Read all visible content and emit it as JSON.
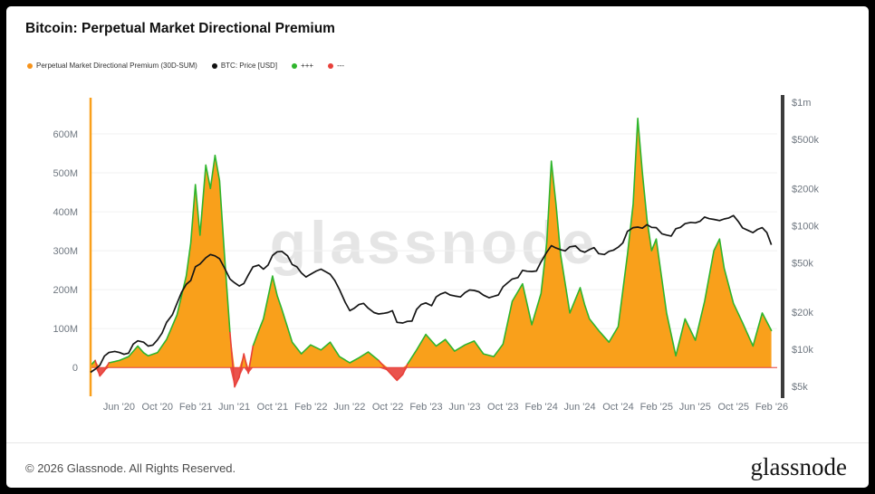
{
  "header": {
    "title": "Bitcoin: Perpetual Market Directional Premium"
  },
  "legend": [
    {
      "label": "Perpetual Market Directional Premium (30D-SUM)",
      "color": "#F7931A"
    },
    {
      "label": "BTC: Price [USD]",
      "color": "#111111"
    },
    {
      "label": "+++",
      "color": "#2FB52C"
    },
    {
      "label": "---",
      "color": "#E8403A"
    }
  ],
  "watermark": "glassnode",
  "footer": {
    "copyright": "© 2026 Glassnode. All Rights Reserved.",
    "brand": "glassnode"
  },
  "chart_data": {
    "type": "area+line",
    "title": "Bitcoin: Perpetual Market Directional Premium",
    "grid": "horizontal",
    "legend_position": "top-left",
    "x_range": [
      2020.17,
      2026.13
    ],
    "ylim_left": [
      -60,
      693
    ],
    "ylim_right_log": [
      4600,
      1088000
    ],
    "left_ticks": [
      {
        "v": 0,
        "label": "0"
      },
      {
        "v": 100,
        "label": "100M"
      },
      {
        "v": 200,
        "label": "200M"
      },
      {
        "v": 300,
        "label": "300M"
      },
      {
        "v": 400,
        "label": "400M"
      },
      {
        "v": 500,
        "label": "500M"
      },
      {
        "v": 600,
        "label": "600M"
      }
    ],
    "right_ticks": [
      {
        "v": 5000,
        "label": "$5k"
      },
      {
        "v": 10000,
        "label": "$10k"
      },
      {
        "v": 20000,
        "label": "$20k"
      },
      {
        "v": 50000,
        "label": "$50k"
      },
      {
        "v": 100000,
        "label": "$100k"
      },
      {
        "v": 200000,
        "label": "$200k"
      },
      {
        "v": 500000,
        "label": "$500k"
      },
      {
        "v": 1000000,
        "label": "$1m"
      }
    ],
    "x_ticks": [
      {
        "t": 2020.417,
        "label": "Jun '20"
      },
      {
        "t": 2020.75,
        "label": "Oct '20"
      },
      {
        "t": 2021.083,
        "label": "Feb '21"
      },
      {
        "t": 2021.417,
        "label": "Jun '21"
      },
      {
        "t": 2021.75,
        "label": "Oct '21"
      },
      {
        "t": 2022.083,
        "label": "Feb '22"
      },
      {
        "t": 2022.417,
        "label": "Jun '22"
      },
      {
        "t": 2022.75,
        "label": "Oct '22"
      },
      {
        "t": 2023.083,
        "label": "Feb '23"
      },
      {
        "t": 2023.417,
        "label": "Jun '23"
      },
      {
        "t": 2023.75,
        "label": "Oct '23"
      },
      {
        "t": 2024.083,
        "label": "Feb '24"
      },
      {
        "t": 2024.417,
        "label": "Jun '24"
      },
      {
        "t": 2024.75,
        "label": "Oct '24"
      },
      {
        "t": 2025.083,
        "label": "Feb '25"
      },
      {
        "t": 2025.417,
        "label": "Jun '25"
      },
      {
        "t": 2025.75,
        "label": "Oct '25"
      },
      {
        "t": 2026.083,
        "label": "Feb '26"
      }
    ],
    "series": [
      {
        "name": "Perpetual Market Directional Premium (30D-SUM)",
        "type": "area",
        "axis": "left",
        "unit": "M USD",
        "fill": "#F9A01B",
        "pos_color": "#2FB52C",
        "neg_color": "#E8403A",
        "points": [
          [
            2020.17,
            5
          ],
          [
            2020.21,
            18
          ],
          [
            2020.25,
            -22
          ],
          [
            2020.29,
            -8
          ],
          [
            2020.33,
            12
          ],
          [
            2020.42,
            18
          ],
          [
            2020.5,
            28
          ],
          [
            2020.58,
            55
          ],
          [
            2020.63,
            38
          ],
          [
            2020.67,
            30
          ],
          [
            2020.75,
            38
          ],
          [
            2020.83,
            72
          ],
          [
            2020.92,
            135
          ],
          [
            2021.0,
            235
          ],
          [
            2021.04,
            320
          ],
          [
            2021.08,
            470
          ],
          [
            2021.12,
            340
          ],
          [
            2021.17,
            520
          ],
          [
            2021.21,
            460
          ],
          [
            2021.25,
            545
          ],
          [
            2021.29,
            480
          ],
          [
            2021.33,
            300
          ],
          [
            2021.38,
            90
          ],
          [
            2021.42,
            -50
          ],
          [
            2021.46,
            -25
          ],
          [
            2021.5,
            35
          ],
          [
            2021.54,
            -15
          ],
          [
            2021.58,
            55
          ],
          [
            2021.63,
            95
          ],
          [
            2021.67,
            125
          ],
          [
            2021.75,
            235
          ],
          [
            2021.79,
            185
          ],
          [
            2021.83,
            150
          ],
          [
            2021.92,
            65
          ],
          [
            2022.0,
            35
          ],
          [
            2022.08,
            58
          ],
          [
            2022.17,
            45
          ],
          [
            2022.25,
            65
          ],
          [
            2022.33,
            28
          ],
          [
            2022.42,
            12
          ],
          [
            2022.5,
            25
          ],
          [
            2022.58,
            40
          ],
          [
            2022.67,
            18
          ],
          [
            2022.75,
            -8
          ],
          [
            2022.83,
            -33
          ],
          [
            2022.88,
            -18
          ],
          [
            2022.92,
            8
          ],
          [
            2023.0,
            45
          ],
          [
            2023.08,
            85
          ],
          [
            2023.17,
            55
          ],
          [
            2023.25,
            72
          ],
          [
            2023.33,
            42
          ],
          [
            2023.42,
            58
          ],
          [
            2023.5,
            68
          ],
          [
            2023.58,
            35
          ],
          [
            2023.67,
            28
          ],
          [
            2023.75,
            60
          ],
          [
            2023.83,
            170
          ],
          [
            2023.92,
            215
          ],
          [
            2024.0,
            110
          ],
          [
            2024.08,
            190
          ],
          [
            2024.13,
            320
          ],
          [
            2024.17,
            530
          ],
          [
            2024.21,
            420
          ],
          [
            2024.25,
            290
          ],
          [
            2024.33,
            140
          ],
          [
            2024.42,
            205
          ],
          [
            2024.46,
            160
          ],
          [
            2024.5,
            125
          ],
          [
            2024.58,
            95
          ],
          [
            2024.67,
            65
          ],
          [
            2024.75,
            105
          ],
          [
            2024.83,
            290
          ],
          [
            2024.88,
            420
          ],
          [
            2024.92,
            640
          ],
          [
            2024.96,
            500
          ],
          [
            2025.0,
            380
          ],
          [
            2025.04,
            300
          ],
          [
            2025.08,
            330
          ],
          [
            2025.17,
            140
          ],
          [
            2025.25,
            30
          ],
          [
            2025.33,
            125
          ],
          [
            2025.42,
            70
          ],
          [
            2025.5,
            170
          ],
          [
            2025.58,
            300
          ],
          [
            2025.63,
            330
          ],
          [
            2025.67,
            255
          ],
          [
            2025.75,
            165
          ],
          [
            2025.83,
            115
          ],
          [
            2025.92,
            55
          ],
          [
            2026.0,
            140
          ],
          [
            2026.08,
            95
          ]
        ]
      },
      {
        "name": "BTC: Price [USD]",
        "type": "line",
        "axis": "right-log",
        "color": "#161616",
        "points": [
          [
            2020.17,
            6500
          ],
          [
            2020.21,
            6900
          ],
          [
            2020.25,
            7400
          ],
          [
            2020.29,
            8800
          ],
          [
            2020.33,
            9400
          ],
          [
            2020.38,
            9600
          ],
          [
            2020.42,
            9400
          ],
          [
            2020.46,
            9100
          ],
          [
            2020.5,
            9300
          ],
          [
            2020.54,
            11000
          ],
          [
            2020.58,
            11700
          ],
          [
            2020.63,
            11400
          ],
          [
            2020.67,
            10600
          ],
          [
            2020.71,
            10800
          ],
          [
            2020.75,
            11900
          ],
          [
            2020.79,
            13500
          ],
          [
            2020.83,
            16500
          ],
          [
            2020.88,
            19000
          ],
          [
            2020.92,
            23500
          ],
          [
            2020.96,
            29000
          ],
          [
            2021.0,
            33500
          ],
          [
            2021.04,
            36000
          ],
          [
            2021.08,
            46500
          ],
          [
            2021.12,
            49000
          ],
          [
            2021.17,
            55000
          ],
          [
            2021.21,
            58500
          ],
          [
            2021.25,
            57000
          ],
          [
            2021.29,
            54000
          ],
          [
            2021.33,
            46000
          ],
          [
            2021.38,
            37000
          ],
          [
            2021.42,
            34500
          ],
          [
            2021.46,
            32500
          ],
          [
            2021.5,
            34000
          ],
          [
            2021.54,
            40000
          ],
          [
            2021.58,
            46500
          ],
          [
            2021.63,
            48000
          ],
          [
            2021.67,
            44500
          ],
          [
            2021.71,
            48000
          ],
          [
            2021.75,
            57500
          ],
          [
            2021.79,
            61500
          ],
          [
            2021.83,
            62000
          ],
          [
            2021.88,
            57000
          ],
          [
            2021.92,
            48500
          ],
          [
            2021.96,
            46500
          ],
          [
            2022.0,
            41500
          ],
          [
            2022.04,
            38500
          ],
          [
            2022.08,
            40500
          ],
          [
            2022.13,
            43000
          ],
          [
            2022.17,
            44500
          ],
          [
            2022.21,
            42500
          ],
          [
            2022.25,
            40500
          ],
          [
            2022.29,
            36000
          ],
          [
            2022.33,
            30500
          ],
          [
            2022.38,
            24000
          ],
          [
            2022.42,
            20500
          ],
          [
            2022.46,
            21500
          ],
          [
            2022.5,
            23000
          ],
          [
            2022.54,
            23500
          ],
          [
            2022.58,
            21500
          ],
          [
            2022.63,
            19800
          ],
          [
            2022.67,
            19300
          ],
          [
            2022.71,
            19500
          ],
          [
            2022.75,
            19800
          ],
          [
            2022.79,
            20500
          ],
          [
            2022.83,
            16500
          ],
          [
            2022.88,
            16300
          ],
          [
            2022.92,
            16800
          ],
          [
            2022.96,
            16900
          ],
          [
            2023.0,
            21000
          ],
          [
            2023.04,
            23000
          ],
          [
            2023.08,
            23700
          ],
          [
            2023.13,
            22500
          ],
          [
            2023.17,
            26500
          ],
          [
            2023.21,
            28000
          ],
          [
            2023.25,
            28900
          ],
          [
            2023.29,
            27500
          ],
          [
            2023.33,
            27000
          ],
          [
            2023.38,
            26500
          ],
          [
            2023.42,
            28700
          ],
          [
            2023.46,
            30200
          ],
          [
            2023.5,
            29900
          ],
          [
            2023.54,
            29200
          ],
          [
            2023.58,
            27400
          ],
          [
            2023.63,
            26100
          ],
          [
            2023.67,
            26800
          ],
          [
            2023.71,
            27500
          ],
          [
            2023.75,
            32000
          ],
          [
            2023.79,
            34500
          ],
          [
            2023.83,
            37000
          ],
          [
            2023.88,
            38000
          ],
          [
            2023.92,
            43500
          ],
          [
            2023.96,
            42800
          ],
          [
            2024.0,
            42600
          ],
          [
            2024.04,
            43000
          ],
          [
            2024.08,
            51000
          ],
          [
            2024.13,
            61000
          ],
          [
            2024.17,
            69000
          ],
          [
            2024.21,
            66000
          ],
          [
            2024.25,
            64000
          ],
          [
            2024.29,
            62500
          ],
          [
            2024.33,
            67500
          ],
          [
            2024.38,
            68500
          ],
          [
            2024.42,
            63000
          ],
          [
            2024.46,
            61000
          ],
          [
            2024.5,
            64000
          ],
          [
            2024.54,
            66500
          ],
          [
            2024.58,
            59500
          ],
          [
            2024.63,
            58500
          ],
          [
            2024.67,
            62000
          ],
          [
            2024.71,
            63500
          ],
          [
            2024.75,
            67000
          ],
          [
            2024.79,
            72500
          ],
          [
            2024.83,
            90000
          ],
          [
            2024.88,
            96500
          ],
          [
            2024.92,
            97500
          ],
          [
            2024.96,
            95500
          ],
          [
            2025.0,
            102000
          ],
          [
            2025.04,
            97000
          ],
          [
            2025.08,
            96500
          ],
          [
            2025.13,
            86000
          ],
          [
            2025.17,
            84000
          ],
          [
            2025.21,
            82500
          ],
          [
            2025.25,
            94500
          ],
          [
            2025.29,
            97000
          ],
          [
            2025.33,
            104000
          ],
          [
            2025.38,
            106500
          ],
          [
            2025.42,
            105500
          ],
          [
            2025.46,
            108500
          ],
          [
            2025.5,
            117500
          ],
          [
            2025.54,
            114000
          ],
          [
            2025.58,
            112500
          ],
          [
            2025.63,
            110000
          ],
          [
            2025.67,
            113500
          ],
          [
            2025.71,
            115500
          ],
          [
            2025.75,
            121000
          ],
          [
            2025.79,
            109000
          ],
          [
            2025.83,
            96000
          ],
          [
            2025.88,
            91500
          ],
          [
            2025.92,
            88000
          ],
          [
            2025.96,
            93500
          ],
          [
            2026.0,
            96500
          ],
          [
            2026.04,
            88000
          ],
          [
            2026.08,
            70000
          ]
        ]
      }
    ]
  }
}
